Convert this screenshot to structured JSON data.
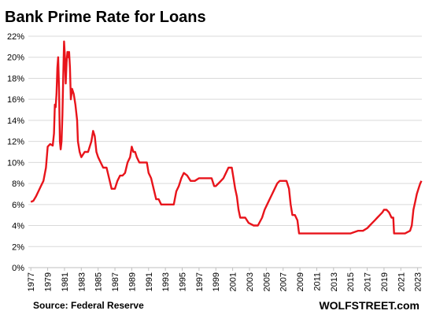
{
  "chart_data": {
    "type": "line",
    "title": "Bank Prime Rate for Loans",
    "xlabel": "",
    "ylabel": "",
    "xlim": [
      1976.7,
      2023.5
    ],
    "ylim": [
      0,
      22
    ],
    "y_ticks": [
      0,
      2,
      4,
      6,
      8,
      10,
      12,
      14,
      16,
      18,
      20,
      22
    ],
    "y_tick_labels": [
      "0%",
      "2%",
      "4%",
      "6%",
      "8%",
      "10%",
      "12%",
      "14%",
      "16%",
      "18%",
      "20%",
      "22%"
    ],
    "x_ticks": [
      1977,
      1979,
      1981,
      1983,
      1985,
      1987,
      1989,
      1991,
      1993,
      1995,
      1997,
      1999,
      2001,
      2003,
      2005,
      2007,
      2009,
      2011,
      2013,
      2015,
      2017,
      2019,
      2021,
      2023
    ],
    "x_tick_labels": [
      "1977",
      "1979",
      "1981",
      "1983",
      "1985",
      "1987",
      "1989",
      "1991",
      "1993",
      "1995",
      "1997",
      "1999",
      "2001",
      "2003",
      "2005",
      "2007",
      "2009",
      "2011",
      "2013",
      "2015",
      "2017",
      "2019",
      "2021",
      "2023"
    ],
    "grid": "horizontal",
    "series": [
      {
        "color": "#e8141b",
        "x": [
          1977.0,
          1977.3,
          1977.6,
          1977.9,
          1978.2,
          1978.5,
          1978.8,
          1979.0,
          1979.3,
          1979.6,
          1979.75,
          1979.85,
          1979.95,
          1980.05,
          1980.15,
          1980.25,
          1980.35,
          1980.45,
          1980.55,
          1980.65,
          1980.75,
          1980.85,
          1980.95,
          1981.05,
          1981.15,
          1981.25,
          1981.35,
          1981.45,
          1981.55,
          1981.65,
          1981.75,
          1981.9,
          1982.1,
          1982.3,
          1982.5,
          1982.6,
          1982.7,
          1982.8,
          1983.0,
          1983.4,
          1983.8,
          1984.2,
          1984.4,
          1984.6,
          1984.8,
          1985.0,
          1985.3,
          1985.6,
          1986.0,
          1986.3,
          1986.6,
          1987.0,
          1987.3,
          1987.6,
          1987.9,
          1988.2,
          1988.5,
          1988.8,
          1989.0,
          1989.2,
          1989.4,
          1989.6,
          1989.9,
          1990.2,
          1990.5,
          1990.8,
          1991.0,
          1991.3,
          1991.6,
          1991.9,
          1992.2,
          1992.5,
          1993.0,
          1993.5,
          1994.0,
          1994.3,
          1994.6,
          1994.9,
          1995.2,
          1995.6,
          1996.0,
          1996.5,
          1997.0,
          1997.5,
          1998.0,
          1998.5,
          1998.8,
          1999.0,
          1999.3,
          1999.6,
          1999.9,
          2000.2,
          2000.5,
          2000.9,
          2001.1,
          2001.3,
          2001.5,
          2001.7,
          2001.9,
          2002.2,
          2002.5,
          2002.9,
          2003.5,
          2004.0,
          2004.5,
          2004.8,
          2005.1,
          2005.4,
          2005.7,
          2006.0,
          2006.3,
          2006.6,
          2007.0,
          2007.4,
          2007.7,
          2007.9,
          2008.1,
          2008.4,
          2008.7,
          2008.9,
          2009.0,
          2010.0,
          2011.0,
          2012.0,
          2013.0,
          2014.0,
          2015.0,
          2015.9,
          2016.5,
          2017.0,
          2017.3,
          2017.6,
          2017.9,
          2018.2,
          2018.5,
          2018.8,
          2019.0,
          2019.3,
          2019.6,
          2019.9,
          2020.1,
          2020.2,
          2021.0,
          2021.5,
          2022.1,
          2022.3,
          2022.5,
          2022.7,
          2022.9,
          2023.1,
          2023.3,
          2023.45
        ],
        "y": [
          6.25,
          6.35,
          6.75,
          7.25,
          7.75,
          8.25,
          9.5,
          11.5,
          11.75,
          11.6,
          12.75,
          15.5,
          15.25,
          16.5,
          19.0,
          20.0,
          17.0,
          12.0,
          11.25,
          12.0,
          14.5,
          18.0,
          21.5,
          20.0,
          17.5,
          19.5,
          20.5,
          20.0,
          20.5,
          19.0,
          16.0,
          17.0,
          16.5,
          15.5,
          14.0,
          12.0,
          11.5,
          11.0,
          10.5,
          11.0,
          11.0,
          12.0,
          13.0,
          12.5,
          11.0,
          10.5,
          10.0,
          9.5,
          9.5,
          8.5,
          7.5,
          7.5,
          8.25,
          8.75,
          8.75,
          9.0,
          10.0,
          10.5,
          11.5,
          11.0,
          11.0,
          10.5,
          10.0,
          10.0,
          10.0,
          10.0,
          9.0,
          8.5,
          7.5,
          6.5,
          6.5,
          6.0,
          6.0,
          6.0,
          6.0,
          7.25,
          7.75,
          8.5,
          9.0,
          8.75,
          8.25,
          8.25,
          8.5,
          8.5,
          8.5,
          8.5,
          7.75,
          7.75,
          8.0,
          8.25,
          8.5,
          9.0,
          9.5,
          9.5,
          8.5,
          7.5,
          6.75,
          5.5,
          4.75,
          4.75,
          4.75,
          4.25,
          4.0,
          4.0,
          4.75,
          5.5,
          6.0,
          6.5,
          7.0,
          7.5,
          8.0,
          8.25,
          8.25,
          8.25,
          7.5,
          6.0,
          5.0,
          5.0,
          4.5,
          3.25,
          3.25,
          3.25,
          3.25,
          3.25,
          3.25,
          3.25,
          3.25,
          3.5,
          3.5,
          3.75,
          4.0,
          4.25,
          4.5,
          4.75,
          5.0,
          5.25,
          5.5,
          5.5,
          5.25,
          4.75,
          4.75,
          3.25,
          3.25,
          3.25,
          3.5,
          4.0,
          5.5,
          6.25,
          7.0,
          7.5,
          8.0,
          8.25
        ]
      }
    ]
  },
  "footer": {
    "source": "Source: Federal Reserve",
    "brand": "WOLFSTREET.com"
  }
}
